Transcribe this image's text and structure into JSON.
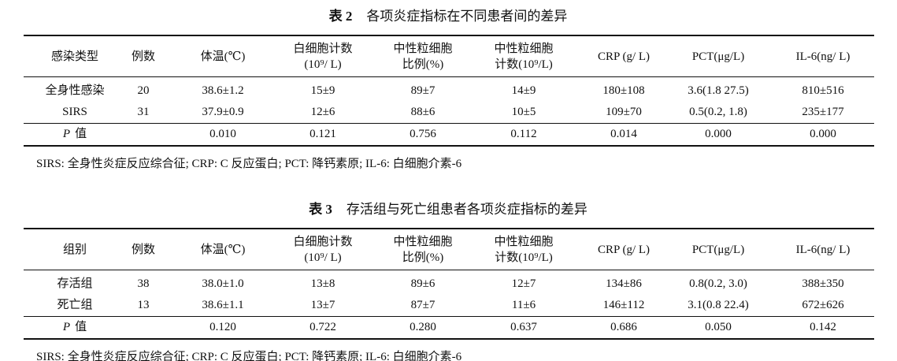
{
  "tables": [
    {
      "title": {
        "label": "表 2",
        "text": "各项炎症指标在不同患者间的差异"
      },
      "headers": [
        [
          "感染类型"
        ],
        [
          "例数"
        ],
        [
          "体温(℃)"
        ],
        [
          "白细胞计数",
          "(10⁹/ L)"
        ],
        [
          "中性粒细胞",
          "比例(%)"
        ],
        [
          "中性粒细胞",
          "计数(10⁹/L)"
        ],
        [
          "CRP (g/ L)"
        ],
        [
          "PCT(μg/L)"
        ],
        [
          "IL-6(ng/ L)"
        ]
      ],
      "rows": [
        [
          "全身性感染",
          "20",
          "38.6±1.2",
          "15±9",
          "89±7",
          "14±9",
          "180±108",
          "3.6(1.8 27.5)",
          "810±516"
        ],
        [
          "SIRS",
          "31",
          "37.9±0.9",
          "12±6",
          "88±6",
          "10±5",
          "109±70",
          "0.5(0.2, 1.8)",
          "235±177"
        ]
      ],
      "p_row": {
        "label": [
          "P",
          "值"
        ],
        "values": [
          "0.010",
          "0.121",
          "0.756",
          "0.112",
          "0.014",
          "0.000",
          "0.000"
        ]
      },
      "note": "SIRS: 全身性炎症反应综合征; CRP: C 反应蛋白; PCT: 降钙素原; IL-6: 白细胞介素-6"
    },
    {
      "title": {
        "label": "表 3",
        "text": "存活组与死亡组患者各项炎症指标的差异"
      },
      "headers": [
        [
          "组别"
        ],
        [
          "例数"
        ],
        [
          "体温(℃)"
        ],
        [
          "白细胞计数",
          "(10⁹/ L)"
        ],
        [
          "中性粒细胞",
          "比例(%)"
        ],
        [
          "中性粒细胞",
          "计数(10⁹/L)"
        ],
        [
          "CRP (g/ L)"
        ],
        [
          "PCT(μg/L)"
        ],
        [
          "IL-6(ng/ L)"
        ]
      ],
      "rows": [
        [
          "存活组",
          "38",
          "38.0±1.0",
          "13±8",
          "89±6",
          "12±7",
          "134±86",
          "0.8(0.2, 3.0)",
          "388±350"
        ],
        [
          "死亡组",
          "13",
          "38.6±1.1",
          "13±7",
          "87±7",
          "11±6",
          "146±112",
          "3.1(0.8 22.4)",
          "672±626"
        ]
      ],
      "p_row": {
        "label": [
          "P",
          "值"
        ],
        "values": [
          "0.120",
          "0.722",
          "0.280",
          "0.637",
          "0.686",
          "0.050",
          "0.142"
        ]
      },
      "note": "SIRS: 全身性炎症反应综合征; CRP: C 反应蛋白; PCT: 降钙素原; IL-6: 白细胞介素-6"
    }
  ]
}
